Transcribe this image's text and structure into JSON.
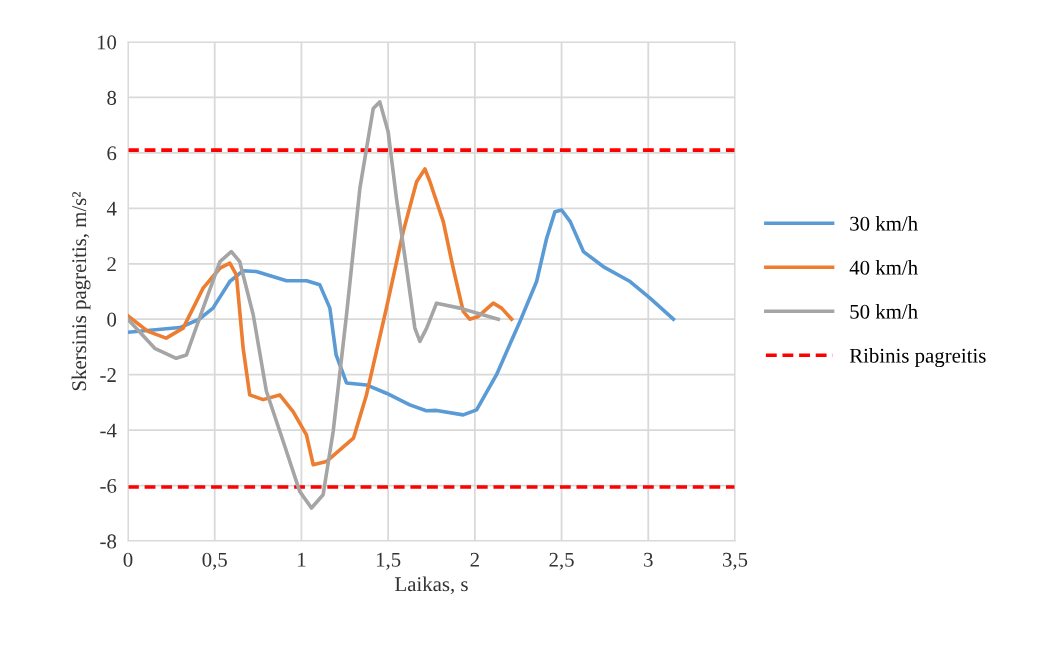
{
  "chart_data": {
    "type": "line",
    "xlabel": "Laikas, s",
    "ylabel": "Skersinis pagreitis, m/s²",
    "xlim": [
      0,
      3.5
    ],
    "xticks": [
      0,
      {
        "value": 0.5,
        "label": "0,5"
      },
      1,
      {
        "value": 1.5,
        "label": "1,5"
      },
      2,
      {
        "value": 2.5,
        "label": "2,5"
      },
      3,
      {
        "value": 3.5,
        "label": "3,5"
      }
    ],
    "ylim": [
      -8,
      10
    ],
    "yticks": [
      -8,
      -6,
      -4,
      -2,
      0,
      2,
      4,
      6,
      8,
      10
    ],
    "grid": true,
    "legend": "right",
    "line_style": "solid",
    "marker": "none",
    "series": [
      {
        "name": "30 km/h",
        "color": "#5b9bd5",
        "x": [
          0,
          0.3,
          0.41,
          0.49,
          0.587,
          0.664,
          0.74,
          0.914,
          1.03,
          1.106,
          1.164,
          1.2,
          1.26,
          1.375,
          1.49,
          1.625,
          1.72,
          1.779,
          1.933,
          2.01,
          2.125,
          2.26,
          2.356,
          2.414,
          2.462,
          2.5,
          2.55,
          2.626,
          2.74,
          2.895,
          3.01,
          3.145
        ],
        "values": [
          -0.47,
          -0.3,
          0,
          0.4,
          1.36,
          1.75,
          1.72,
          1.39,
          1.39,
          1.24,
          0.4,
          -1.29,
          -2.3,
          -2.37,
          -2.67,
          -3.09,
          -3.3,
          -3.29,
          -3.45,
          -3.27,
          -2.0,
          -0.08,
          1.36,
          2.92,
          3.88,
          3.94,
          3.52,
          2.44,
          1.9,
          1.36,
          0.76,
          0
        ]
      },
      {
        "name": "40 km/h",
        "color": "#ed7d31",
        "x": [
          0,
          0.115,
          0.22,
          0.318,
          0.433,
          0.53,
          0.587,
          0.625,
          0.664,
          0.702,
          0.779,
          0.875,
          0.952,
          1.029,
          1.068,
          1.145,
          1.3,
          1.375,
          1.49,
          1.587,
          1.664,
          1.712,
          1.741,
          1.818,
          1.875,
          1.933,
          1.97,
          2.02,
          2.106,
          2.154,
          2.212
        ],
        "values": [
          0.12,
          -0.44,
          -0.68,
          -0.32,
          1.12,
          1.84,
          2.02,
          1.6,
          -1.05,
          -2.73,
          -2.9,
          -2.73,
          -3.33,
          -4.17,
          -5.25,
          -5.13,
          -4.29,
          -2.73,
          0.4,
          3.16,
          4.96,
          5.42,
          4.96,
          3.52,
          1.84,
          0.28,
          0,
          0.1,
          0.58,
          0.4,
          0
        ]
      },
      {
        "name": "50 km/h",
        "color": "#a5a5a5",
        "x": [
          0,
          0.154,
          0.278,
          0.337,
          0.433,
          0.53,
          0.596,
          0.644,
          0.722,
          0.798,
          0.895,
          0.99,
          1.058,
          1.125,
          1.183,
          1.26,
          1.337,
          1.414,
          1.452,
          1.5,
          1.548,
          1.606,
          1.654,
          1.683,
          1.722,
          1.779,
          1.914,
          2.03,
          2.135
        ],
        "values": [
          0,
          -1.05,
          -1.41,
          -1.29,
          0.4,
          2.08,
          2.44,
          2.08,
          0.16,
          -2.6,
          -4.41,
          -6.21,
          -6.81,
          -6.33,
          -4.05,
          0.16,
          4.72,
          7.6,
          7.84,
          6.76,
          4.36,
          1.84,
          -0.32,
          -0.8,
          -0.32,
          0.58,
          0.4,
          0.19,
          0
        ]
      }
    ],
    "ref_lines": [
      {
        "axis": "y",
        "value": 6.1,
        "label": "Ribinis pagreitis",
        "color": "#ff0000",
        "line_style": "dashed"
      },
      {
        "axis": "y",
        "value": -6.05,
        "color": "#ff0000",
        "line_style": "dashed"
      }
    ]
  }
}
